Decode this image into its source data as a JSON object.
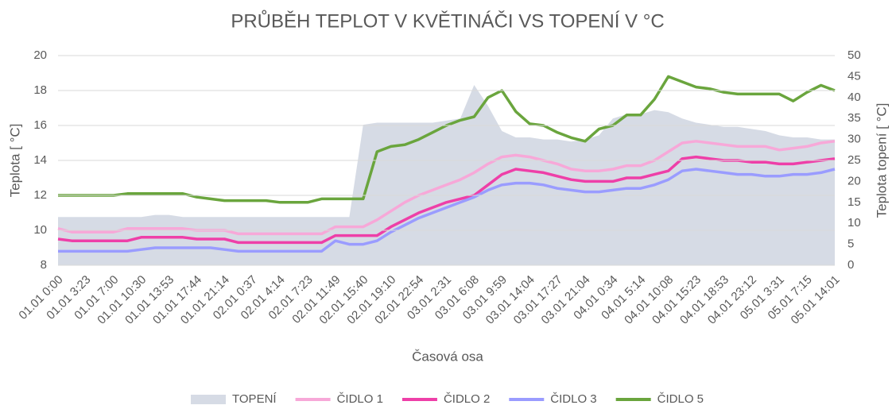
{
  "chart_data": {
    "type": "line",
    "title": "PRŮBĚH TEPLOT V KVĚTINÁČI VS TOPENÍ V °C",
    "y_label": "Teplota [ °C]",
    "y2_label": "Teplota topení [ °C]",
    "x_label": "Časová osa",
    "categories": [
      "01.01 0:00",
      null,
      "01.01 3:23",
      null,
      "01.01 7:00",
      null,
      "01.01 10:30",
      null,
      "01.01 13:53",
      null,
      "01.01 17:44",
      null,
      "01.01 21:14",
      null,
      "02.01 0:37",
      null,
      "02.01 4:14",
      null,
      "02.01 7:23",
      null,
      "02.01 11:49",
      null,
      "02.01 15:40",
      null,
      "02.01 19:10",
      null,
      "02.01 22:54",
      null,
      "03.01 2:31",
      null,
      "03.01 6:08",
      null,
      "03.01 9:59",
      null,
      "03.01 14:04",
      null,
      "03.01 17:27",
      null,
      "03.01 21:04",
      null,
      "04.01 0:34",
      null,
      "04.01 5:14",
      null,
      "04.01 10:08",
      null,
      "04.01 15:23",
      null,
      "04.01 18:53",
      null,
      "04.01 23:12",
      null,
      "05.01 3:31",
      null,
      "05.01 7:15",
      null,
      "05.01 14:01"
    ],
    "series": [
      {
        "name": "TOPENÍ",
        "type": "area",
        "axis": "y2",
        "color": "#d6dbe5",
        "values": [
          11.5,
          11.5,
          11.5,
          11.5,
          11.5,
          11.5,
          11.5,
          12,
          12,
          11.5,
          11.5,
          11.5,
          11.5,
          11.5,
          11.5,
          11.5,
          11.5,
          11.5,
          11.5,
          11.5,
          11.5,
          11.5,
          33.5,
          34,
          34,
          34,
          34,
          34,
          34.5,
          35,
          43,
          38,
          32,
          30.5,
          30.5,
          30,
          30,
          29.5,
          30,
          31,
          35,
          36,
          36,
          37,
          36.5,
          35,
          34,
          33.5,
          33,
          33,
          32.5,
          32,
          31,
          30.5,
          30.5,
          30,
          30
        ]
      },
      {
        "name": "ČIDLO 1",
        "type": "line",
        "color": "#f7a8d8",
        "values": [
          10.1,
          9.9,
          9.9,
          9.9,
          9.9,
          10.1,
          10.1,
          10.1,
          10.1,
          10.1,
          10.0,
          10.0,
          10.0,
          9.8,
          9.8,
          9.8,
          9.8,
          9.8,
          9.8,
          9.8,
          10.2,
          10.2,
          10.2,
          10.6,
          11.1,
          11.6,
          12.0,
          12.3,
          12.6,
          12.9,
          13.3,
          13.8,
          14.2,
          14.3,
          14.2,
          14.0,
          13.8,
          13.5,
          13.4,
          13.4,
          13.5,
          13.7,
          13.7,
          14.0,
          14.5,
          15.0,
          15.1,
          15.0,
          14.9,
          14.8,
          14.8,
          14.8,
          14.6,
          14.7,
          14.8,
          15.0,
          15.1
        ]
      },
      {
        "name": "ČIDLO 2",
        "type": "line",
        "color": "#ee3fa8",
        "values": [
          9.5,
          9.4,
          9.4,
          9.4,
          9.4,
          9.4,
          9.6,
          9.6,
          9.6,
          9.6,
          9.5,
          9.5,
          9.5,
          9.3,
          9.3,
          9.3,
          9.3,
          9.3,
          9.3,
          9.3,
          9.7,
          9.7,
          9.7,
          9.7,
          10.2,
          10.6,
          11.0,
          11.3,
          11.6,
          11.8,
          12.0,
          12.6,
          13.2,
          13.5,
          13.4,
          13.3,
          13.1,
          12.9,
          12.8,
          12.8,
          12.8,
          13.0,
          13.0,
          13.2,
          13.4,
          14.1,
          14.2,
          14.1,
          14.0,
          14.0,
          13.9,
          13.9,
          13.8,
          13.8,
          13.9,
          14.0,
          14.1
        ]
      },
      {
        "name": "ČIDLO 3",
        "type": "line",
        "color": "#9a9cff",
        "values": [
          8.8,
          8.8,
          8.8,
          8.8,
          8.8,
          8.8,
          8.9,
          9.0,
          9.0,
          9.0,
          9.0,
          9.0,
          8.9,
          8.8,
          8.8,
          8.8,
          8.8,
          8.8,
          8.8,
          8.8,
          9.4,
          9.2,
          9.2,
          9.4,
          9.9,
          10.3,
          10.7,
          11.0,
          11.3,
          11.6,
          11.9,
          12.3,
          12.6,
          12.7,
          12.7,
          12.6,
          12.4,
          12.3,
          12.2,
          12.2,
          12.3,
          12.4,
          12.4,
          12.6,
          12.9,
          13.4,
          13.5,
          13.4,
          13.3,
          13.2,
          13.2,
          13.1,
          13.1,
          13.2,
          13.2,
          13.3,
          13.5
        ]
      },
      {
        "name": "ČIDLO 5",
        "type": "line",
        "color": "#6aa53d",
        "values": [
          12,
          12,
          12,
          12,
          12,
          12.1,
          12.1,
          12.1,
          12.1,
          12.1,
          11.9,
          11.8,
          11.7,
          11.7,
          11.7,
          11.7,
          11.6,
          11.6,
          11.6,
          11.8,
          11.8,
          11.8,
          11.8,
          14.5,
          14.8,
          14.9,
          15.2,
          15.6,
          16.0,
          16.3,
          16.5,
          17.6,
          18.0,
          16.8,
          16.1,
          16.0,
          15.6,
          15.3,
          15.1,
          15.8,
          16.0,
          16.6,
          16.6,
          17.5,
          18.8,
          18.5,
          18.2,
          18.1,
          17.9,
          17.8,
          17.8,
          17.8,
          17.8,
          17.4,
          17.9,
          18.3,
          18.0
        ]
      }
    ],
    "ylim": [
      8,
      20
    ],
    "yticks": [
      8,
      10,
      12,
      14,
      16,
      18,
      20
    ],
    "y2lim": [
      0,
      50
    ],
    "y2ticks": [
      0,
      5,
      10,
      15,
      20,
      25,
      30,
      35,
      40,
      45,
      50
    ],
    "grid": true,
    "legend": "bottom"
  }
}
